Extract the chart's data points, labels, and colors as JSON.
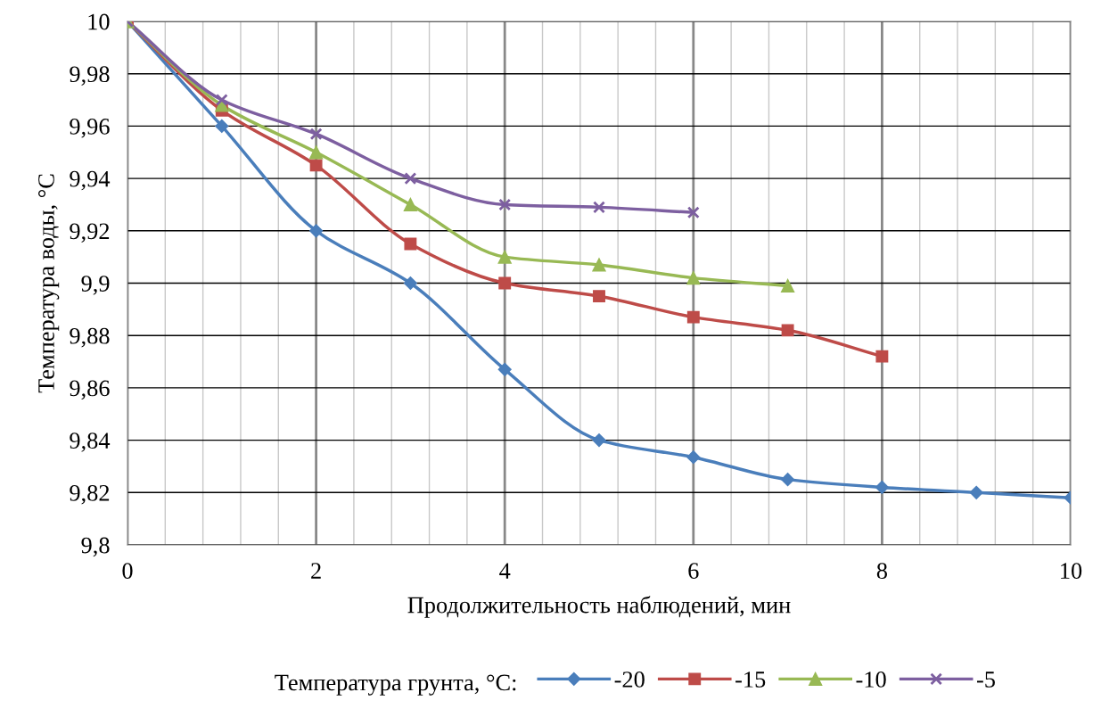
{
  "chart_data": {
    "type": "line",
    "xlabel": "Продолжительность наблюдений, мин",
    "ylabel": "Температура воды, °C",
    "legend_title": "Температура грунта, °C:",
    "x": [
      0,
      1,
      2,
      3,
      4,
      5,
      6,
      7,
      8,
      9,
      10
    ],
    "series": [
      {
        "name": "-20",
        "color": "#4a7ebb",
        "marker": "diamond",
        "values": [
          10,
          9.96,
          9.92,
          9.9,
          9.867,
          9.84,
          9.8335,
          9.825,
          9.822,
          9.82,
          9.818
        ]
      },
      {
        "name": "-15",
        "color": "#be4b48",
        "marker": "square",
        "values": [
          10,
          9.966,
          9.945,
          9.915,
          9.9,
          9.895,
          9.887,
          9.882,
          9.872,
          null,
          null
        ]
      },
      {
        "name": "-10",
        "color": "#98b954",
        "marker": "triangle",
        "values": [
          10,
          9.968,
          9.95,
          9.93,
          9.91,
          9.907,
          9.902,
          9.899,
          null,
          null,
          null
        ]
      },
      {
        "name": "-5",
        "color": "#7d5fa0",
        "marker": "cross",
        "values": [
          10,
          9.97,
          9.957,
          9.94,
          9.93,
          9.929,
          9.927,
          null,
          null,
          null,
          null
        ]
      }
    ],
    "xlim": [
      0,
      10
    ],
    "xticks": [
      0,
      {
        "value": 0.4,
        "label": null
      },
      {
        "value": 0.8,
        "label": null
      },
      {
        "value": 1.2,
        "label": null
      },
      {
        "value": 1.6,
        "label": null
      },
      2,
      {
        "value": 2.4,
        "label": null
      },
      {
        "value": 2.8,
        "label": null
      },
      {
        "value": 3.2,
        "label": null
      },
      {
        "value": 3.6,
        "label": null
      },
      4,
      {
        "value": 4.4,
        "label": null
      },
      {
        "value": 4.8,
        "label": null
      },
      {
        "value": 5.2,
        "label": null
      },
      {
        "value": 5.6,
        "label": null
      },
      6,
      {
        "value": 6.4,
        "label": null
      },
      {
        "value": 6.8,
        "label": null
      },
      {
        "value": 7.2,
        "label": null
      },
      {
        "value": 7.6,
        "label": null
      },
      8,
      {
        "value": 8.4,
        "label": null
      },
      {
        "value": 8.8,
        "label": null
      },
      {
        "value": 9.2,
        "label": null
      },
      {
        "value": 9.6,
        "label": null
      },
      10
    ],
    "ylim": [
      9.8,
      10
    ],
    "yticks": [
      {
        "value": 9.8,
        "label": "9,8"
      },
      {
        "value": 9.82,
        "label": "9,82"
      },
      {
        "value": 9.84,
        "label": "9,84"
      },
      {
        "value": 9.86,
        "label": "9,86"
      },
      {
        "value": 9.88,
        "label": "9,88"
      },
      {
        "value": 9.9,
        "label": "9,9"
      },
      {
        "value": 9.92,
        "label": "9,92"
      },
      {
        "value": 9.94,
        "label": "9,94"
      },
      {
        "value": 9.96,
        "label": "9,96"
      },
      {
        "value": 9.98,
        "label": "9,98"
      },
      10
    ],
    "grid": true,
    "legend": "bottom",
    "line_style": "solid"
  }
}
